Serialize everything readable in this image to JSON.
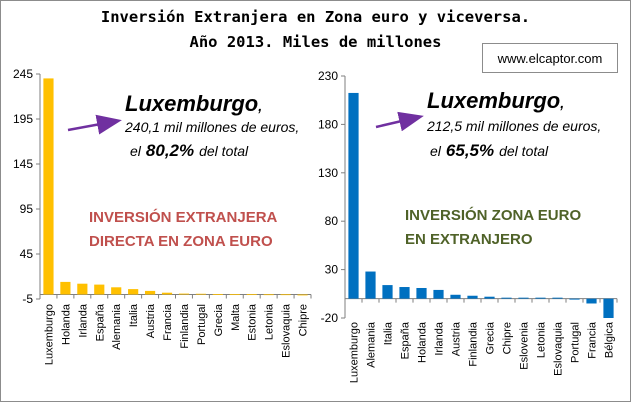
{
  "title_line1": "Inversión Extranjera en Zona euro y viceversa.",
  "title_line2": "Año 2013. Miles de millones",
  "website": "www.elcaptor.com",
  "colors": {
    "left_bars": "#ffc000",
    "right_bars": "#0070c0",
    "arrow": "#7030a0",
    "left_label": "#c0504d",
    "right_label": "#4f6228"
  },
  "chart_data": [
    {
      "type": "bar",
      "title": "INVERSIÓN EXTRANJERA DIRECTA EN ZONA EURO",
      "label_lines": [
        "INVERSIÓN EXTRANJERA",
        "DIRECTA EN ZONA EURO"
      ],
      "yticks": [
        -5,
        45,
        95,
        145,
        195,
        245
      ],
      "ylim": [
        -5,
        245
      ],
      "grid": false,
      "categories": [
        "Luxemburgo",
        "Holanda",
        "Irlanda",
        "España",
        "Alemania",
        "Italia",
        "Austria",
        "Francia",
        "Finlandia",
        "Portugal",
        "Grecia",
        "Malta",
        "Estonia",
        "Letonia",
        "Eslovaquia",
        "Chipre"
      ],
      "values": [
        240.1,
        14,
        12,
        11,
        8,
        6,
        4,
        2,
        1,
        0.8,
        0.5,
        0.3,
        0.3,
        0.2,
        0.2,
        -1
      ],
      "annotation": {
        "country": "Luxemburgo",
        "comma": ",",
        "line2": "240,1 mil millones de euros,",
        "line3_prefix": "el",
        "percent": "80,2%",
        "line3_suffix": "del total"
      }
    },
    {
      "type": "bar",
      "title": "INVERSIÓN ZONA EURO EN EXTRANJERO",
      "label_lines": [
        "INVERSIÓN ZONA EURO",
        "EN EXTRANJERO"
      ],
      "yticks": [
        -20,
        30,
        80,
        130,
        180,
        230
      ],
      "ylim": [
        -20,
        230
      ],
      "grid": false,
      "categories": [
        "Luxemburgo",
        "Alemania",
        "Italia",
        "España",
        "Holanda",
        "Irlanda",
        "Austria",
        "Finlandia",
        "Grecia",
        "Chipre",
        "Eslovenia",
        "Letonia",
        "Eslovaquia",
        "Portugal",
        "Francia",
        "Bélgica"
      ],
      "values": [
        212.5,
        28,
        14,
        12,
        11,
        9,
        4,
        3,
        2,
        1,
        1,
        1,
        1,
        -1,
        -5,
        -20
      ],
      "annotation": {
        "country": "Luxemburgo",
        "comma": ",",
        "line2": "212,5 mil millones de euros,",
        "line3_prefix": "el",
        "percent": "65,5%",
        "line3_suffix": "del total"
      }
    }
  ]
}
